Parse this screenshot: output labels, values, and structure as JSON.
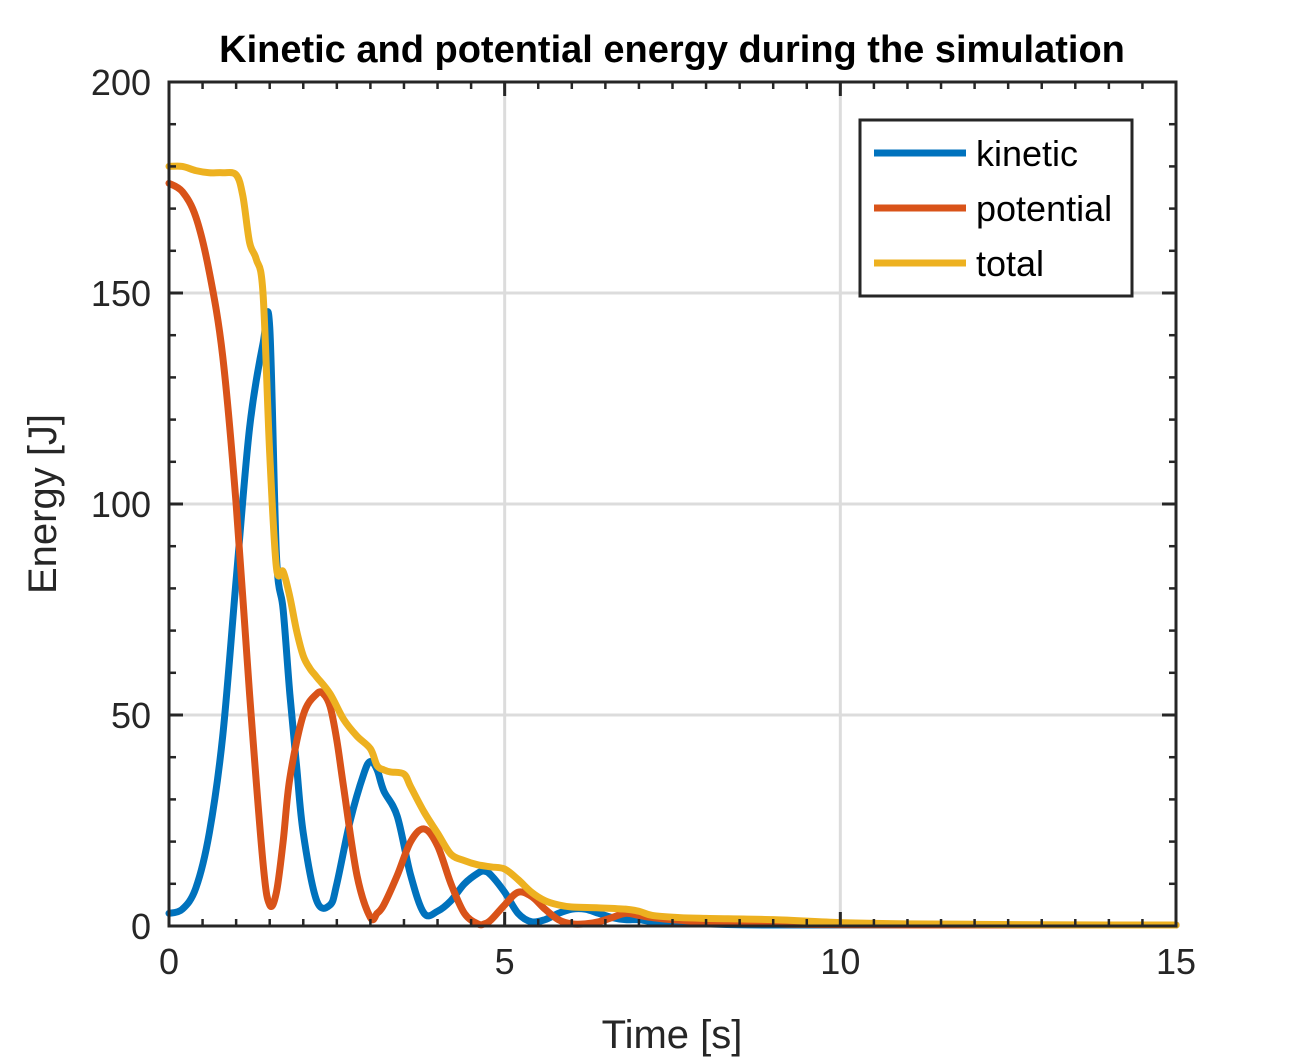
{
  "chart_data": {
    "type": "line",
    "title": "Kinetic and potential energy during the simulation",
    "xlabel": "Time [s]",
    "ylabel": "Energy [J]",
    "xlim": [
      0,
      15
    ],
    "ylim": [
      0,
      200
    ],
    "xticks": [
      0,
      5,
      10,
      15
    ],
    "yticks": [
      0,
      50,
      100,
      150,
      200
    ],
    "xtick_labels": [
      "0",
      "5",
      "10",
      "15"
    ],
    "ytick_labels": [
      "0",
      "50",
      "100",
      "150",
      "200"
    ],
    "grid": true,
    "legend_position": "top-right",
    "series": [
      {
        "name": "kinetic",
        "color": "#0072BD",
        "x": [
          0,
          0.2,
          0.4,
          0.6,
          0.8,
          1.0,
          1.2,
          1.4,
          1.5,
          1.6,
          1.7,
          1.8,
          1.9,
          2.0,
          2.2,
          2.4,
          2.5,
          2.7,
          2.9,
          3.0,
          3.1,
          3.2,
          3.4,
          3.6,
          3.8,
          4.0,
          4.2,
          4.4,
          4.6,
          4.7,
          4.8,
          5.0,
          5.2,
          5.4,
          5.6,
          5.8,
          6.0,
          6.2,
          6.4,
          6.6,
          6.8,
          7.0,
          7.2,
          7.5,
          8.0,
          8.5,
          9.0,
          10.0,
          11.0,
          12.0,
          13.0,
          14.0,
          15.0
        ],
        "y": [
          3,
          4,
          9,
          22,
          45,
          82,
          118,
          138,
          142,
          88,
          75,
          55,
          38,
          22,
          6,
          5,
          10,
          25,
          36,
          39,
          37,
          32,
          26,
          12,
          3,
          3.5,
          6,
          10,
          12.5,
          13,
          12,
          8,
          3,
          1,
          1.5,
          3,
          4,
          4,
          3,
          2,
          1.5,
          1.5,
          1,
          0.8,
          0.5,
          0.3,
          0.2,
          0.1,
          0.05,
          0.03,
          0.02,
          0.01,
          0
        ]
      },
      {
        "name": "potential",
        "color": "#D95319",
        "x": [
          0,
          0.2,
          0.4,
          0.6,
          0.8,
          1.0,
          1.2,
          1.4,
          1.5,
          1.6,
          1.7,
          1.8,
          2.0,
          2.2,
          2.3,
          2.4,
          2.5,
          2.6,
          2.8,
          3.0,
          3.1,
          3.2,
          3.4,
          3.6,
          3.8,
          4.0,
          4.2,
          4.4,
          4.6,
          4.7,
          4.8,
          5.0,
          5.2,
          5.4,
          5.6,
          5.8,
          6.0,
          6.2,
          6.4,
          6.6,
          6.8,
          7.0,
          7.2,
          7.5,
          8.0,
          8.5,
          9.0,
          10.0,
          11.0,
          12.0,
          13.0,
          14.0,
          15.0
        ],
        "y": [
          176,
          174,
          168,
          155,
          135,
          100,
          55,
          15,
          5,
          8,
          20,
          35,
          50,
          55,
          55,
          52,
          44,
          33,
          12,
          2,
          3,
          5,
          12,
          20,
          23,
          19,
          10,
          3,
          0.5,
          0.5,
          1.5,
          5,
          8,
          7,
          4,
          1.5,
          0.5,
          0.5,
          1,
          2,
          3,
          2.5,
          2,
          1.5,
          1,
          1,
          0.5,
          0.3,
          0.2,
          0.1,
          0.05,
          0.02,
          0
        ]
      },
      {
        "name": "total",
        "color": "#EDB120",
        "x": [
          0,
          0.2,
          0.4,
          0.6,
          0.8,
          1.0,
          1.1,
          1.2,
          1.3,
          1.4,
          1.5,
          1.6,
          1.7,
          1.8,
          1.9,
          2.0,
          2.1,
          2.2,
          2.4,
          2.6,
          2.8,
          3.0,
          3.1,
          3.2,
          3.3,
          3.5,
          3.6,
          3.8,
          4.0,
          4.2,
          4.4,
          4.6,
          4.8,
          5.0,
          5.2,
          5.4,
          5.6,
          5.8,
          6.0,
          6.4,
          6.8,
          7.0,
          7.2,
          7.6,
          8.0,
          9.0,
          10.0,
          11.0,
          12.0,
          13.0,
          14.0,
          15.0
        ],
        "y": [
          180,
          180,
          179,
          178.5,
          178.5,
          178,
          173,
          162,
          158,
          150,
          112,
          85,
          84,
          78,
          70,
          64,
          61,
          59,
          55,
          49,
          45,
          42,
          38,
          37,
          36.5,
          36,
          33,
          27,
          22,
          17,
          15.5,
          14.5,
          14,
          13.5,
          11,
          8,
          6,
          5,
          4.5,
          4.3,
          4,
          3.5,
          2.5,
          2,
          1.8,
          1.5,
          0.8,
          0.5,
          0.4,
          0.3,
          0.2,
          0.2
        ]
      }
    ]
  }
}
